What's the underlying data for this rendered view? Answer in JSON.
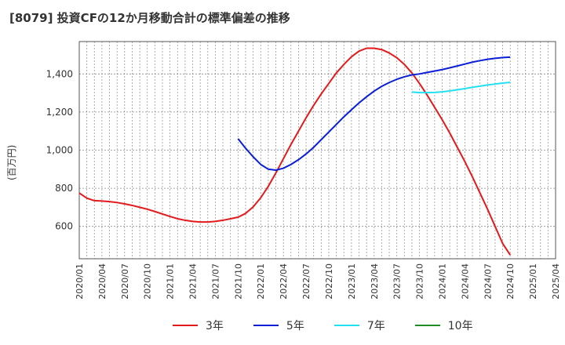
{
  "chart_data": {
    "type": "line",
    "title": "[8079]  投資CFの12か月移動合計の標準偏差の推移",
    "ylabel": "(百万円)",
    "xlabel": "",
    "ylim": [
      430,
      1570
    ],
    "yticks": [
      600,
      800,
      1000,
      1200,
      1400
    ],
    "ytick_labels": [
      "600",
      "800",
      "1,000",
      "1,200",
      "1,400"
    ],
    "x_tick_labels": [
      "2020/01",
      "2020/04",
      "2020/07",
      "2020/10",
      "2021/01",
      "2021/04",
      "2021/07",
      "2021/10",
      "2022/01",
      "2022/04",
      "2022/07",
      "2022/10",
      "2023/01",
      "2023/04",
      "2023/07",
      "2023/10",
      "2024/01",
      "2024/04",
      "2024/07",
      "2024/10",
      "2025/01",
      "2025/04"
    ],
    "grid": true,
    "legend_position": "bottom",
    "series": [
      {
        "name": "3年",
        "color": "#e31a1c",
        "x": [
          "2020/01",
          "2020/02",
          "2020/03",
          "2020/04",
          "2020/05",
          "2020/06",
          "2020/07",
          "2020/08",
          "2020/09",
          "2020/10",
          "2020/11",
          "2020/12",
          "2021/01",
          "2021/02",
          "2021/03",
          "2021/04",
          "2021/05",
          "2021/06",
          "2021/07",
          "2021/08",
          "2021/09",
          "2021/10",
          "2021/11",
          "2021/12",
          "2022/01",
          "2022/02",
          "2022/03",
          "2022/04",
          "2022/05",
          "2022/06",
          "2022/07",
          "2022/08",
          "2022/09",
          "2022/10",
          "2022/11",
          "2022/12",
          "2023/01",
          "2023/02",
          "2023/03",
          "2023/04",
          "2023/05",
          "2023/06",
          "2023/07",
          "2023/08",
          "2023/09",
          "2023/10",
          "2023/11",
          "2023/12",
          "2024/01",
          "2024/02",
          "2024/03",
          "2024/04",
          "2024/05",
          "2024/06",
          "2024/07",
          "2024/08",
          "2024/09",
          "2024/10"
        ],
        "values": [
          775,
          748,
          735,
          733,
          730,
          725,
          718,
          710,
          700,
          690,
          678,
          665,
          652,
          640,
          632,
          626,
          623,
          623,
          626,
          632,
          640,
          648,
          668,
          702,
          750,
          810,
          880,
          955,
          1030,
          1100,
          1170,
          1235,
          1295,
          1350,
          1405,
          1450,
          1490,
          1520,
          1535,
          1535,
          1528,
          1510,
          1485,
          1450,
          1405,
          1350,
          1290,
          1225,
          1160,
          1090,
          1015,
          940,
          860,
          775,
          690,
          600,
          510,
          450
        ]
      },
      {
        "name": "5年",
        "color": "#0a1fd6",
        "x": [
          "2021/10",
          "2021/11",
          "2021/12",
          "2022/01",
          "2022/02",
          "2022/03",
          "2022/04",
          "2022/05",
          "2022/06",
          "2022/07",
          "2022/08",
          "2022/09",
          "2022/10",
          "2022/11",
          "2022/12",
          "2023/01",
          "2023/02",
          "2023/03",
          "2023/04",
          "2023/05",
          "2023/06",
          "2023/07",
          "2023/08",
          "2023/09",
          "2023/10",
          "2023/11",
          "2023/12",
          "2024/01",
          "2024/02",
          "2024/03",
          "2024/04",
          "2024/05",
          "2024/06",
          "2024/07",
          "2024/08",
          "2024/09",
          "2024/10"
        ],
        "values": [
          1060,
          1010,
          965,
          925,
          900,
          895,
          905,
          925,
          950,
          980,
          1015,
          1055,
          1095,
          1135,
          1175,
          1212,
          1248,
          1280,
          1310,
          1335,
          1355,
          1372,
          1385,
          1395,
          1400,
          1408,
          1415,
          1423,
          1432,
          1442,
          1452,
          1462,
          1470,
          1477,
          1482,
          1486,
          1488
        ]
      },
      {
        "name": "7年",
        "color": "#22e0f0",
        "x": [
          "2023/09",
          "2023/10",
          "2023/11",
          "2023/12",
          "2024/01",
          "2024/02",
          "2024/03",
          "2024/04",
          "2024/05",
          "2024/06",
          "2024/07",
          "2024/08",
          "2024/09",
          "2024/10"
        ],
        "values": [
          1305,
          1302,
          1302,
          1303,
          1306,
          1311,
          1317,
          1323,
          1330,
          1336,
          1342,
          1347,
          1352,
          1356
        ]
      },
      {
        "name": "10年",
        "color": "#228b22",
        "x": [],
        "values": []
      }
    ]
  }
}
